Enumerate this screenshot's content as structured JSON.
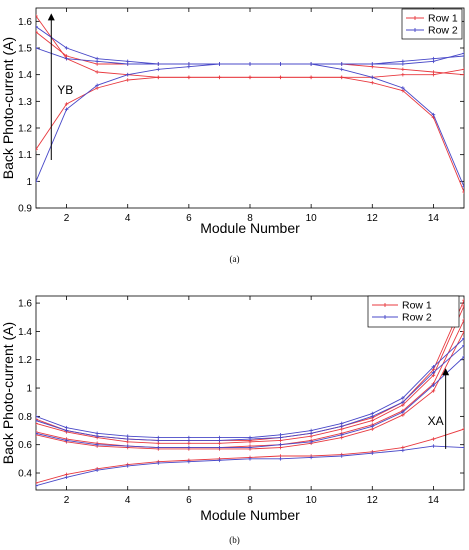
{
  "chart_data": [
    {
      "type": "line",
      "panel_caption": "(a)",
      "xlabel": "Module Number",
      "ylabel": "Back Photo-current (A)",
      "xlim": [
        1,
        15
      ],
      "ylim": [
        0.9,
        1.65
      ],
      "xticks": [
        2,
        4,
        6,
        8,
        10,
        12,
        14
      ],
      "yticks": [
        0.9,
        1,
        1.1,
        1.2,
        1.3,
        1.4,
        1.5,
        1.6
      ],
      "grid": false,
      "legend_position": "top-right",
      "legend": [
        {
          "label": "Row 1",
          "color": "#e8393f"
        },
        {
          "label": "Row 2",
          "color": "#4848c8"
        }
      ],
      "annotation": {
        "text": "YB",
        "arrow_x": 1.5,
        "arrow_from": 1.08,
        "arrow_to": 1.63,
        "direction": "up"
      },
      "x": [
        1,
        2,
        3,
        4,
        5,
        6,
        7,
        8,
        9,
        10,
        11,
        12,
        13,
        14,
        15
      ],
      "series": [
        {
          "color": "#e8393f",
          "values": [
            1.62,
            1.46,
            1.41,
            1.4,
            1.39,
            1.39,
            1.39,
            1.39,
            1.39,
            1.39,
            1.39,
            1.39,
            1.4,
            1.4,
            1.42
          ]
        },
        {
          "color": "#e8393f",
          "values": [
            1.56,
            1.47,
            1.44,
            1.44,
            1.44,
            1.44,
            1.44,
            1.44,
            1.44,
            1.44,
            1.44,
            1.43,
            1.42,
            1.41,
            1.4
          ]
        },
        {
          "color": "#e8393f",
          "values": [
            1.12,
            1.29,
            1.35,
            1.38,
            1.39,
            1.39,
            1.39,
            1.39,
            1.39,
            1.39,
            1.39,
            1.37,
            1.34,
            1.24,
            0.96
          ]
        },
        {
          "color": "#4848c8",
          "values": [
            1.58,
            1.5,
            1.46,
            1.45,
            1.44,
            1.44,
            1.44,
            1.44,
            1.44,
            1.44,
            1.44,
            1.44,
            1.44,
            1.45,
            1.48
          ]
        },
        {
          "color": "#4848c8",
          "values": [
            1.5,
            1.46,
            1.45,
            1.44,
            1.44,
            1.44,
            1.44,
            1.44,
            1.44,
            1.44,
            1.42,
            1.39,
            1.35,
            1.25,
            0.98
          ]
        },
        {
          "color": "#4848c8",
          "values": [
            1.0,
            1.27,
            1.36,
            1.4,
            1.42,
            1.43,
            1.44,
            1.44,
            1.44,
            1.44,
            1.44,
            1.44,
            1.45,
            1.46,
            1.47
          ]
        }
      ]
    },
    {
      "type": "line",
      "panel_caption": "(b)",
      "xlabel": "Module Number",
      "ylabel": "Back Photo-current (A)",
      "xlim": [
        1,
        15
      ],
      "ylim": [
        0.28,
        1.65
      ],
      "xticks": [
        2,
        4,
        6,
        8,
        10,
        12,
        14
      ],
      "yticks": [
        0.4,
        0.6,
        0.8,
        1,
        1.2,
        1.4,
        1.6
      ],
      "grid": false,
      "legend_position": "top-right",
      "legend": [
        {
          "label": "Row 1",
          "color": "#e8393f"
        },
        {
          "label": "Row 2",
          "color": "#4848c8"
        }
      ],
      "annotation": {
        "text": "XA",
        "arrow_x": 14.4,
        "arrow_from": 0.57,
        "arrow_to": 1.14,
        "direction": "up"
      },
      "x": [
        1,
        2,
        3,
        4,
        5,
        6,
        7,
        8,
        9,
        10,
        11,
        12,
        13,
        14,
        15
      ],
      "series": [
        {
          "color": "#e8393f",
          "values": [
            0.78,
            0.7,
            0.66,
            0.64,
            0.63,
            0.63,
            0.63,
            0.63,
            0.65,
            0.68,
            0.73,
            0.79,
            0.9,
            1.13,
            1.62
          ]
        },
        {
          "color": "#e8393f",
          "values": [
            0.75,
            0.69,
            0.65,
            0.62,
            0.61,
            0.61,
            0.61,
            0.62,
            0.63,
            0.66,
            0.71,
            0.77,
            0.88,
            1.09,
            1.58
          ]
        },
        {
          "color": "#e8393f",
          "values": [
            0.69,
            0.64,
            0.61,
            0.59,
            0.58,
            0.58,
            0.58,
            0.59,
            0.6,
            0.63,
            0.68,
            0.74,
            0.84,
            1.03,
            1.48
          ]
        },
        {
          "color": "#e8393f",
          "values": [
            0.67,
            0.62,
            0.59,
            0.58,
            0.57,
            0.57,
            0.57,
            0.57,
            0.58,
            0.61,
            0.65,
            0.71,
            0.81,
            0.98,
            1.4
          ]
        },
        {
          "color": "#e8393f",
          "values": [
            0.33,
            0.39,
            0.43,
            0.46,
            0.48,
            0.49,
            0.5,
            0.51,
            0.52,
            0.52,
            0.53,
            0.55,
            0.58,
            0.64,
            0.71
          ]
        },
        {
          "color": "#4848c8",
          "values": [
            0.8,
            0.72,
            0.68,
            0.66,
            0.65,
            0.65,
            0.65,
            0.65,
            0.67,
            0.7,
            0.75,
            0.82,
            0.93,
            1.15,
            1.35
          ]
        },
        {
          "color": "#4848c8",
          "values": [
            0.77,
            0.7,
            0.66,
            0.64,
            0.63,
            0.63,
            0.63,
            0.64,
            0.65,
            0.68,
            0.73,
            0.8,
            0.9,
            1.11,
            1.3
          ]
        },
        {
          "color": "#4848c8",
          "values": [
            0.68,
            0.63,
            0.6,
            0.59,
            0.58,
            0.58,
            0.58,
            0.58,
            0.6,
            0.62,
            0.67,
            0.73,
            0.83,
            1.02,
            1.22
          ]
        },
        {
          "color": "#4848c8",
          "values": [
            0.31,
            0.37,
            0.42,
            0.45,
            0.47,
            0.48,
            0.49,
            0.5,
            0.5,
            0.51,
            0.52,
            0.54,
            0.56,
            0.59,
            0.58
          ]
        }
      ]
    }
  ]
}
